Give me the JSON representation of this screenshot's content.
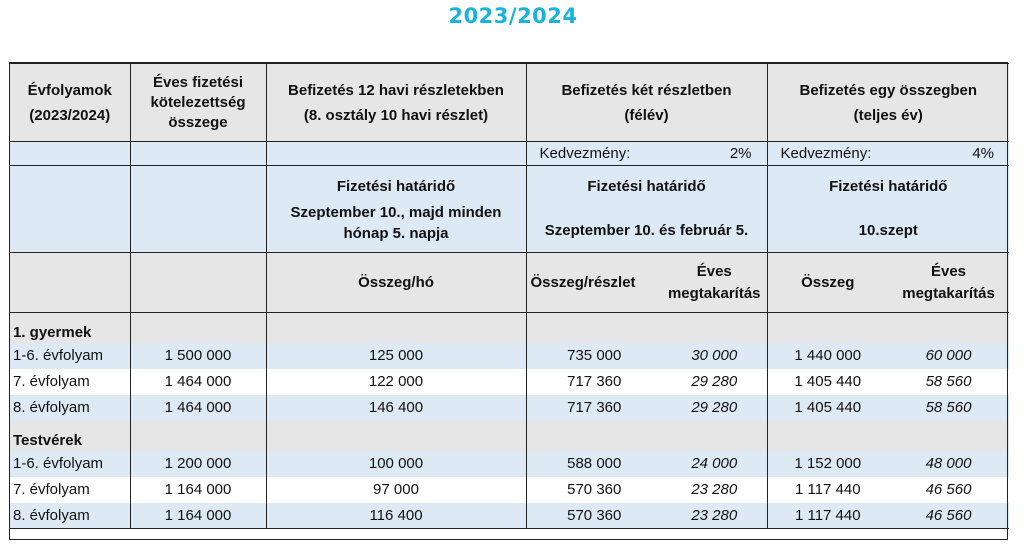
{
  "title": "2023/2024",
  "header": {
    "col1": [
      "Évfolyamok",
      "(2023/2024)"
    ],
    "col2": [
      "Éves fizetési",
      "kötelezettség",
      "összege"
    ],
    "col3": [
      "Befizetés 12 havi részletekben",
      "(8. osztály 10 havi részlet)"
    ],
    "col4": [
      "Befizetés két részletben",
      "(félév)"
    ],
    "col5": [
      "Befizetés egy összegben",
      "(teljes év)"
    ]
  },
  "discount": {
    "two_label": "Kedvezmény:",
    "two_value": "2%",
    "one_label": "Kedvezmény:",
    "one_value": "4%"
  },
  "deadline": {
    "label": "Fizetési határidő",
    "monthly": [
      "Szeptember 10., majd minden",
      "hónap 5. napja"
    ],
    "two": "Szeptember 10. és február 5.",
    "one": "10.szept"
  },
  "subheader": {
    "monthly": "Összeg/hó",
    "two_amount": "Összeg/részlet",
    "two_savings": [
      "Éves",
      "megtakarítás"
    ],
    "one_amount": "Összeg",
    "one_savings": [
      "Éves",
      "megtakarítás"
    ]
  },
  "groups": [
    {
      "label": "1. gyermek",
      "rows": [
        {
          "grade": "1-6. évfolyam",
          "annual": "1 500 000",
          "monthly": "125 000",
          "two_amount": "735 000",
          "two_savings": "30 000",
          "one_amount": "1 440 000",
          "one_savings": "60 000"
        },
        {
          "grade": "7. évfolyam",
          "annual": "1 464 000",
          "monthly": "122 000",
          "two_amount": "717 360",
          "two_savings": "29 280",
          "one_amount": "1 405 440",
          "one_savings": "58 560"
        },
        {
          "grade": "8. évfolyam",
          "annual": "1 464 000",
          "monthly": "146 400",
          "two_amount": "717 360",
          "two_savings": "29 280",
          "one_amount": "1 405 440",
          "one_savings": "58 560"
        }
      ]
    },
    {
      "label": "Testvérek",
      "rows": [
        {
          "grade": "1-6. évfolyam",
          "annual": "1 200 000",
          "monthly": "100 000",
          "two_amount": "588 000",
          "two_savings": "24 000",
          "one_amount": "1 152 000",
          "one_savings": "48 000"
        },
        {
          "grade": "7. évfolyam",
          "annual": "1 164 000",
          "monthly": "97 000",
          "two_amount": "570 360",
          "two_savings": "23 280",
          "one_amount": "1 117 440",
          "one_savings": "46 560"
        },
        {
          "grade": "8. évfolyam",
          "annual": "1 164 000",
          "monthly": "116 400",
          "two_amount": "570 360",
          "two_savings": "23 280",
          "one_amount": "1 117 440",
          "one_savings": "46 560"
        }
      ]
    }
  ]
}
